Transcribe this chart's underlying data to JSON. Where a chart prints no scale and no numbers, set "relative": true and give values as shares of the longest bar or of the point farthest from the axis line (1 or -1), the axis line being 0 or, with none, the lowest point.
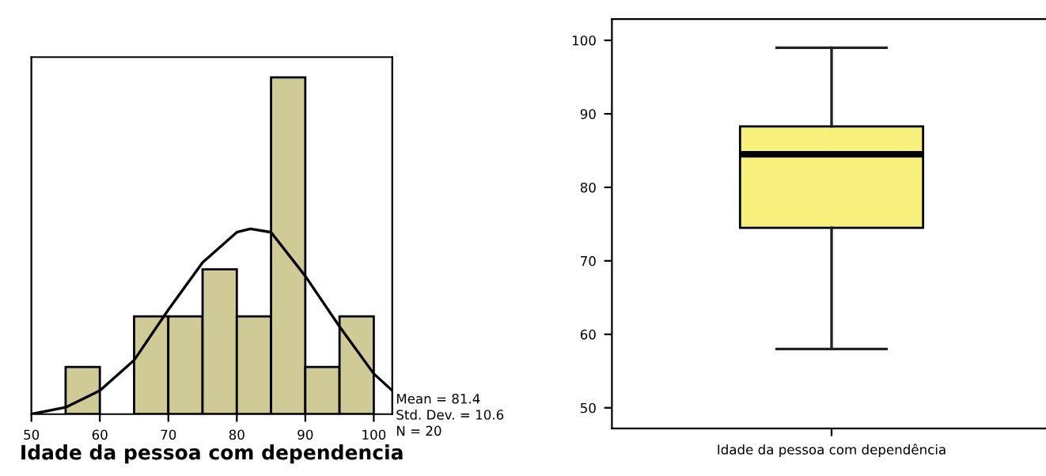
{
  "chart_data": [
    {
      "type": "histogram",
      "relative": true,
      "xlabel": "Idade da pessoa com dependencia",
      "bins": [
        50,
        55,
        60,
        65,
        70,
        75,
        80,
        85,
        90,
        95,
        100
      ],
      "values": [
        0,
        0.14,
        0,
        0.29,
        0.29,
        0.43,
        0.29,
        1,
        0.14,
        0.29
      ],
      "color": "#cfca96",
      "series": [
        {
          "type": "line",
          "color": "#000000",
          "x": [
            50,
            55,
            60,
            65,
            70,
            75,
            80,
            82,
            85,
            90,
            95,
            100,
            102.7
          ],
          "values": [
            0,
            0.02,
            0.07,
            0.16,
            0.31,
            0.45,
            0.54,
            0.55,
            0.54,
            0.41,
            0.26,
            0.12,
            0.07
          ]
        }
      ],
      "xlim": [
        50,
        102.7
      ],
      "xticks": [
        50,
        60,
        70,
        80,
        90,
        100
      ],
      "grid": false,
      "legend": false,
      "annotations": [
        "Mean = 81.4",
        "Std. Dev. = 10.6",
        "N = 20"
      ]
    },
    {
      "type": "box",
      "categories": [
        "Idade da pessoa com dependência"
      ],
      "color": "#f8f07c",
      "boxes": [
        {
          "low": 58,
          "q1": 74.5,
          "median": 84.5,
          "q3": 88.3,
          "high": 99
        }
      ],
      "ylim": [
        47.2,
        102.9
      ],
      "yticks": [
        50,
        60,
        70,
        80,
        90,
        100
      ],
      "grid": false,
      "legend": false
    }
  ]
}
